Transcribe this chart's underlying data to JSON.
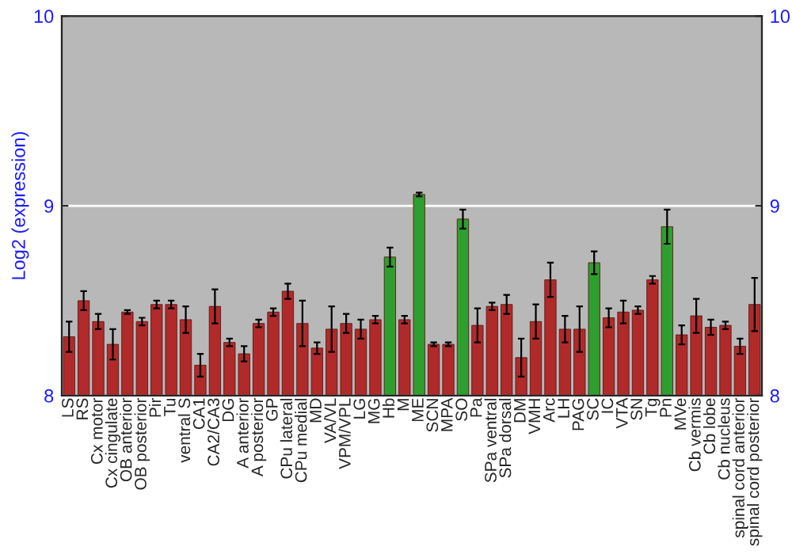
{
  "chart_data": {
    "type": "bar",
    "ylabel": "Log2 (expression)",
    "categories": [
      "LS",
      "RS",
      "Cx motor",
      "Cx cingulate",
      "OB anterior",
      "OB posterior",
      "Pir",
      "Tu",
      "ventral S",
      "CA1",
      "CA2/CA3",
      "DG",
      "A anterior",
      "A posterior",
      "GP",
      "CPu lateral",
      "CPu medial",
      "MD",
      "VA/VL",
      "VPM/VPL",
      "LG",
      "MG",
      "Hb",
      "M",
      "ME",
      "SCN",
      "MPA",
      "SO",
      "Pa",
      "SPa ventral",
      "SPa dorsal",
      "DM",
      "VMH",
      "Arc",
      "LH",
      "PAG",
      "SC",
      "IC",
      "VTA",
      "SN",
      "Tg",
      "Pn",
      "MVe",
      "Cb vermis",
      "Cb lobe",
      "Cb nucleus",
      "spinal cord anterior",
      "spinal cord posterior"
    ],
    "values": [
      8.31,
      8.5,
      8.39,
      8.27,
      8.44,
      8.39,
      8.48,
      8.48,
      8.4,
      8.16,
      8.47,
      8.28,
      8.22,
      8.38,
      8.44,
      8.55,
      8.38,
      8.25,
      8.35,
      8.38,
      8.35,
      8.4,
      8.73,
      8.4,
      9.06,
      8.27,
      8.27,
      8.93,
      8.37,
      8.47,
      8.48,
      8.2,
      8.39,
      8.61,
      8.35,
      8.35,
      8.7,
      8.41,
      8.44,
      8.45,
      8.61,
      8.89,
      8.32,
      8.42,
      8.36,
      8.37,
      8.26,
      8.48
    ],
    "errors": [
      0.08,
      0.05,
      0.04,
      0.08,
      0.01,
      0.02,
      0.02,
      0.02,
      0.07,
      0.06,
      0.09,
      0.02,
      0.04,
      0.02,
      0.02,
      0.04,
      0.12,
      0.03,
      0.12,
      0.05,
      0.05,
      0.02,
      0.05,
      0.02,
      0.01,
      0.01,
      0.01,
      0.05,
      0.09,
      0.02,
      0.05,
      0.1,
      0.09,
      0.09,
      0.07,
      0.12,
      0.06,
      0.05,
      0.06,
      0.02,
      0.02,
      0.09,
      0.05,
      0.09,
      0.04,
      0.02,
      0.04,
      0.14
    ],
    "colors": [
      "#b02a2a",
      "#b02a2a",
      "#b02a2a",
      "#b02a2a",
      "#b02a2a",
      "#b02a2a",
      "#b02a2a",
      "#b02a2a",
      "#b02a2a",
      "#b02a2a",
      "#b02a2a",
      "#b02a2a",
      "#b02a2a",
      "#b02a2a",
      "#b02a2a",
      "#b02a2a",
      "#b02a2a",
      "#b02a2a",
      "#b02a2a",
      "#b02a2a",
      "#b02a2a",
      "#b02a2a",
      "#2e9e2e",
      "#b02a2a",
      "#2e9e2e",
      "#b02a2a",
      "#b02a2a",
      "#2e9e2e",
      "#b02a2a",
      "#b02a2a",
      "#b02a2a",
      "#b02a2a",
      "#b02a2a",
      "#b02a2a",
      "#b02a2a",
      "#b02a2a",
      "#2e9e2e",
      "#b02a2a",
      "#b02a2a",
      "#b02a2a",
      "#b02a2a",
      "#2e9e2e",
      "#b02a2a",
      "#b02a2a",
      "#b02a2a",
      "#b02a2a",
      "#b02a2a",
      "#b02a2a"
    ],
    "ylim": [
      8,
      10
    ],
    "yticks": [
      8,
      9,
      10
    ],
    "y2lim": [
      8,
      10
    ],
    "y2ticks": [
      8,
      9,
      10
    ],
    "grid": "y",
    "legend": false
  }
}
